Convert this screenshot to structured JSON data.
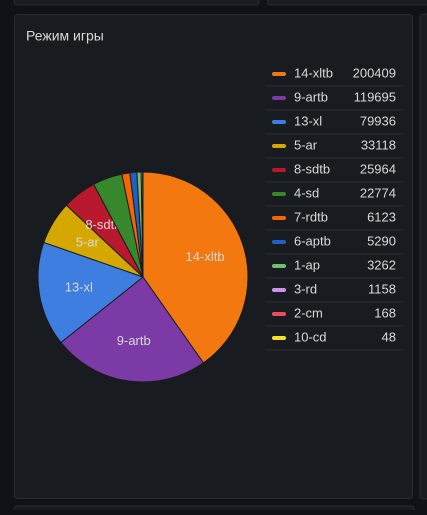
{
  "chart_data": {
    "type": "pie",
    "title": "Режим игры",
    "categories": [
      "14-xltb",
      "9-artb",
      "13-xl",
      "5-ar",
      "8-sdtb",
      "4-sd",
      "7-rdtb",
      "6-aptb",
      "1-ap",
      "3-rd",
      "2-cm",
      "10-cd"
    ],
    "values": [
      200409,
      119695,
      79936,
      33118,
      25964,
      22774,
      6123,
      5290,
      3262,
      1158,
      168,
      48
    ],
    "colors": [
      "#f2780f",
      "#7b3aa6",
      "#3d7ee0",
      "#d4a800",
      "#b8192c",
      "#37872d",
      "#fa6400",
      "#1f60c4",
      "#73bf69",
      "#ca95e5",
      "#f2495c",
      "#fade2a"
    ],
    "legend": "right"
  }
}
